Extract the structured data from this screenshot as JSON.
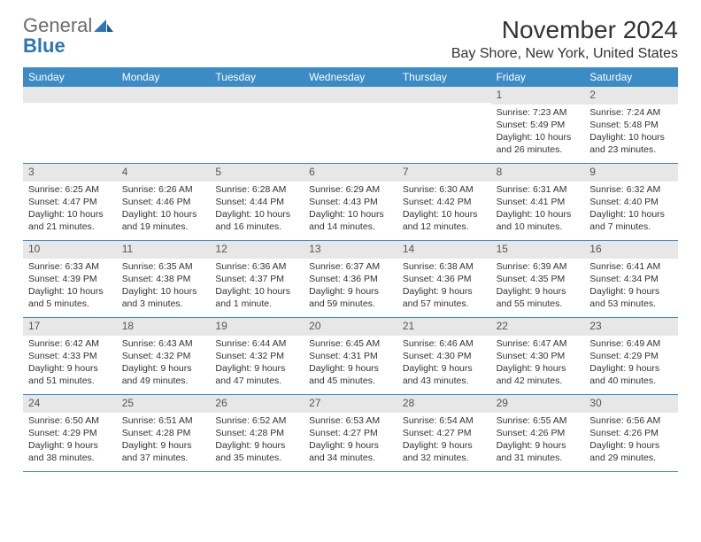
{
  "logo": {
    "text1": "General",
    "text2": "Blue"
  },
  "title": "November 2024",
  "location": "Bay Shore, New York, United States",
  "colors": {
    "header_bg": "#3b8bc6",
    "header_text": "#ffffff",
    "date_strip_bg": "#e7e7e7",
    "border": "#3b8bc6",
    "logo_gray": "#6b6b6b",
    "logo_blue": "#2e75b6"
  },
  "day_headers": [
    "Sunday",
    "Monday",
    "Tuesday",
    "Wednesday",
    "Thursday",
    "Friday",
    "Saturday"
  ],
  "weeks": [
    [
      null,
      null,
      null,
      null,
      null,
      {
        "d": "1",
        "sr": "Sunrise: 7:23 AM",
        "ss": "Sunset: 5:49 PM",
        "dl": "Daylight: 10 hours and 26 minutes."
      },
      {
        "d": "2",
        "sr": "Sunrise: 7:24 AM",
        "ss": "Sunset: 5:48 PM",
        "dl": "Daylight: 10 hours and 23 minutes."
      }
    ],
    [
      {
        "d": "3",
        "sr": "Sunrise: 6:25 AM",
        "ss": "Sunset: 4:47 PM",
        "dl": "Daylight: 10 hours and 21 minutes."
      },
      {
        "d": "4",
        "sr": "Sunrise: 6:26 AM",
        "ss": "Sunset: 4:46 PM",
        "dl": "Daylight: 10 hours and 19 minutes."
      },
      {
        "d": "5",
        "sr": "Sunrise: 6:28 AM",
        "ss": "Sunset: 4:44 PM",
        "dl": "Daylight: 10 hours and 16 minutes."
      },
      {
        "d": "6",
        "sr": "Sunrise: 6:29 AM",
        "ss": "Sunset: 4:43 PM",
        "dl": "Daylight: 10 hours and 14 minutes."
      },
      {
        "d": "7",
        "sr": "Sunrise: 6:30 AM",
        "ss": "Sunset: 4:42 PM",
        "dl": "Daylight: 10 hours and 12 minutes."
      },
      {
        "d": "8",
        "sr": "Sunrise: 6:31 AM",
        "ss": "Sunset: 4:41 PM",
        "dl": "Daylight: 10 hours and 10 minutes."
      },
      {
        "d": "9",
        "sr": "Sunrise: 6:32 AM",
        "ss": "Sunset: 4:40 PM",
        "dl": "Daylight: 10 hours and 7 minutes."
      }
    ],
    [
      {
        "d": "10",
        "sr": "Sunrise: 6:33 AM",
        "ss": "Sunset: 4:39 PM",
        "dl": "Daylight: 10 hours and 5 minutes."
      },
      {
        "d": "11",
        "sr": "Sunrise: 6:35 AM",
        "ss": "Sunset: 4:38 PM",
        "dl": "Daylight: 10 hours and 3 minutes."
      },
      {
        "d": "12",
        "sr": "Sunrise: 6:36 AM",
        "ss": "Sunset: 4:37 PM",
        "dl": "Daylight: 10 hours and 1 minute."
      },
      {
        "d": "13",
        "sr": "Sunrise: 6:37 AM",
        "ss": "Sunset: 4:36 PM",
        "dl": "Daylight: 9 hours and 59 minutes."
      },
      {
        "d": "14",
        "sr": "Sunrise: 6:38 AM",
        "ss": "Sunset: 4:36 PM",
        "dl": "Daylight: 9 hours and 57 minutes."
      },
      {
        "d": "15",
        "sr": "Sunrise: 6:39 AM",
        "ss": "Sunset: 4:35 PM",
        "dl": "Daylight: 9 hours and 55 minutes."
      },
      {
        "d": "16",
        "sr": "Sunrise: 6:41 AM",
        "ss": "Sunset: 4:34 PM",
        "dl": "Daylight: 9 hours and 53 minutes."
      }
    ],
    [
      {
        "d": "17",
        "sr": "Sunrise: 6:42 AM",
        "ss": "Sunset: 4:33 PM",
        "dl": "Daylight: 9 hours and 51 minutes."
      },
      {
        "d": "18",
        "sr": "Sunrise: 6:43 AM",
        "ss": "Sunset: 4:32 PM",
        "dl": "Daylight: 9 hours and 49 minutes."
      },
      {
        "d": "19",
        "sr": "Sunrise: 6:44 AM",
        "ss": "Sunset: 4:32 PM",
        "dl": "Daylight: 9 hours and 47 minutes."
      },
      {
        "d": "20",
        "sr": "Sunrise: 6:45 AM",
        "ss": "Sunset: 4:31 PM",
        "dl": "Daylight: 9 hours and 45 minutes."
      },
      {
        "d": "21",
        "sr": "Sunrise: 6:46 AM",
        "ss": "Sunset: 4:30 PM",
        "dl": "Daylight: 9 hours and 43 minutes."
      },
      {
        "d": "22",
        "sr": "Sunrise: 6:47 AM",
        "ss": "Sunset: 4:30 PM",
        "dl": "Daylight: 9 hours and 42 minutes."
      },
      {
        "d": "23",
        "sr": "Sunrise: 6:49 AM",
        "ss": "Sunset: 4:29 PM",
        "dl": "Daylight: 9 hours and 40 minutes."
      }
    ],
    [
      {
        "d": "24",
        "sr": "Sunrise: 6:50 AM",
        "ss": "Sunset: 4:29 PM",
        "dl": "Daylight: 9 hours and 38 minutes."
      },
      {
        "d": "25",
        "sr": "Sunrise: 6:51 AM",
        "ss": "Sunset: 4:28 PM",
        "dl": "Daylight: 9 hours and 37 minutes."
      },
      {
        "d": "26",
        "sr": "Sunrise: 6:52 AM",
        "ss": "Sunset: 4:28 PM",
        "dl": "Daylight: 9 hours and 35 minutes."
      },
      {
        "d": "27",
        "sr": "Sunrise: 6:53 AM",
        "ss": "Sunset: 4:27 PM",
        "dl": "Daylight: 9 hours and 34 minutes."
      },
      {
        "d": "28",
        "sr": "Sunrise: 6:54 AM",
        "ss": "Sunset: 4:27 PM",
        "dl": "Daylight: 9 hours and 32 minutes."
      },
      {
        "d": "29",
        "sr": "Sunrise: 6:55 AM",
        "ss": "Sunset: 4:26 PM",
        "dl": "Daylight: 9 hours and 31 minutes."
      },
      {
        "d": "30",
        "sr": "Sunrise: 6:56 AM",
        "ss": "Sunset: 4:26 PM",
        "dl": "Daylight: 9 hours and 29 minutes."
      }
    ]
  ]
}
